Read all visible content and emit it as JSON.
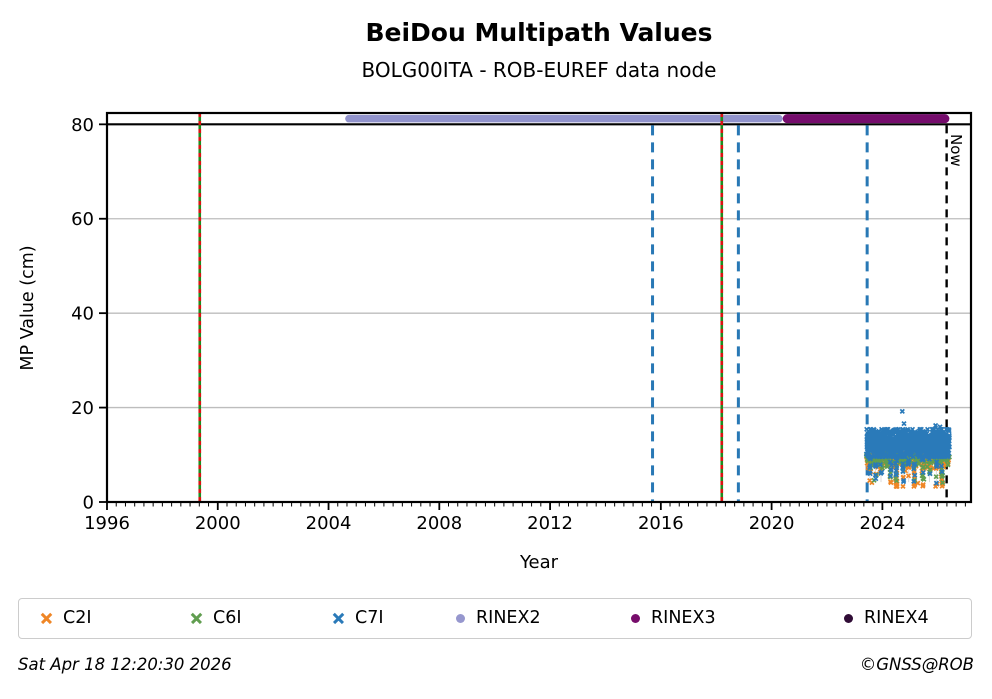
{
  "title": "BeiDou Multipath Values",
  "subtitle": "BOLG00ITA - ROB-EUREF data node",
  "footer": {
    "timestamp": "Sat Apr 18 12:20:30 2026",
    "credit": "©GNSS@ROB"
  },
  "chart_data": {
    "type": "scatter",
    "title": "BeiDou Multipath Values",
    "subtitle": "BOLG00ITA - ROB-EUREF data node",
    "xlabel": "Year",
    "ylabel": "MP Value (cm)",
    "xlim": [
      1996,
      2027.2
    ],
    "ylim": [
      0,
      82.4
    ],
    "x_major_ticks": [
      1996,
      2000,
      2004,
      2008,
      2012,
      2016,
      2020,
      2024
    ],
    "x_minor_tick_step_years": 0.3333,
    "y_ticks": [
      0,
      20,
      40,
      60,
      80
    ],
    "grid": "horizontal-only",
    "grid_color": "#bdbdbd",
    "hline_cm": 80,
    "now_label": "Now",
    "legend": [
      {
        "label": "C2I",
        "marker": "x",
        "color": "#ef8626"
      },
      {
        "label": "C6I",
        "marker": "x",
        "color": "#619e50"
      },
      {
        "label": "C7I",
        "marker": "x",
        "color": "#2a7ab9"
      },
      {
        "label": "RINEX2",
        "marker": "dot",
        "color": "#9697ce"
      },
      {
        "label": "RINEX3",
        "marker": "dot",
        "color": "#770d6b"
      },
      {
        "label": "RINEX4",
        "marker": "dot",
        "color": "#300c36"
      }
    ],
    "rinex_bars": [
      {
        "label": "RINEX2",
        "color": "#9193cc",
        "start_year": 2004.6,
        "end_year": 2020.4,
        "cm": 81.3
      },
      {
        "label": "RINEX3",
        "color": "#750c6c",
        "start_year": 2020.4,
        "end_year": 2026.42,
        "cm": 81.3
      }
    ],
    "event_lines": [
      {
        "year": 1999.35,
        "type": "green-red",
        "colors": [
          "#1e8c1e",
          "#dd1111"
        ]
      },
      {
        "year": 2015.7,
        "type": "blue-dashed",
        "colors": [
          "#2878b5"
        ]
      },
      {
        "year": 2018.2,
        "type": "green-red",
        "colors": [
          "#1e8c1e",
          "#dd1111"
        ]
      },
      {
        "year": 2018.8,
        "type": "blue-dashed",
        "colors": [
          "#2878b5"
        ]
      },
      {
        "year": 2023.45,
        "type": "blue-dashed",
        "colors": [
          "#2878b5"
        ]
      },
      {
        "year": 2026.32,
        "type": "now-dashed",
        "colors": [
          "#000000"
        ],
        "label": "Now"
      }
    ],
    "scatter_x_range_years": [
      2023.42,
      2026.42
    ],
    "column_years": [
      2023.55,
      2023.75,
      2023.95,
      2024.3,
      2024.5,
      2024.75,
      2024.95,
      2025.15,
      2025.45,
      2025.7,
      2025.95,
      2026.15
    ],
    "series": [
      {
        "name": "C2I",
        "marker": "x",
        "color": "#ef8626",
        "clusters": [
          {
            "n": 180,
            "cm_mean": 8.8,
            "cm_sd": 0.8,
            "clip": [
              6.6,
              10.4
            ],
            "columns": false
          },
          {
            "n": 60,
            "cm_mean": 5.8,
            "cm_sd": 1.6,
            "clip": [
              3.3,
              9.0
            ],
            "columns": true
          }
        ],
        "outliers": [
          [
            2023.62,
            4.1
          ],
          [
            2024.52,
            3.8
          ],
          [
            2025.28,
            4.0
          ]
        ]
      },
      {
        "name": "C6I",
        "marker": "x",
        "color": "#619e50",
        "clusters": [
          {
            "n": 170,
            "cm_mean": 9.4,
            "cm_sd": 0.8,
            "clip": [
              7.2,
              11.0
            ],
            "columns": false
          },
          {
            "n": 55,
            "cm_mean": 6.5,
            "cm_sd": 1.5,
            "clip": [
              4.0,
              9.6
            ],
            "columns": true
          }
        ],
        "outliers": [
          [
            2023.7,
            4.6
          ],
          [
            2025.5,
            4.8
          ]
        ]
      },
      {
        "name": "C7I",
        "marker": "x",
        "color": "#2a7ab9",
        "clusters": [
          {
            "n": 1150,
            "cm_mean": 12.4,
            "cm_sd": 1.5,
            "clip": [
              9.6,
              15.4
            ],
            "columns": false
          },
          {
            "n": 65,
            "cm_mean": 7.4,
            "cm_sd": 1.8,
            "clip": [
              4.0,
              9.6
            ],
            "columns": true
          }
        ],
        "outliers": [
          [
            2024.72,
            19.2
          ],
          [
            2024.78,
            16.6
          ],
          [
            2025.92,
            16.2
          ],
          [
            2026.08,
            15.9
          ]
        ]
      }
    ]
  }
}
